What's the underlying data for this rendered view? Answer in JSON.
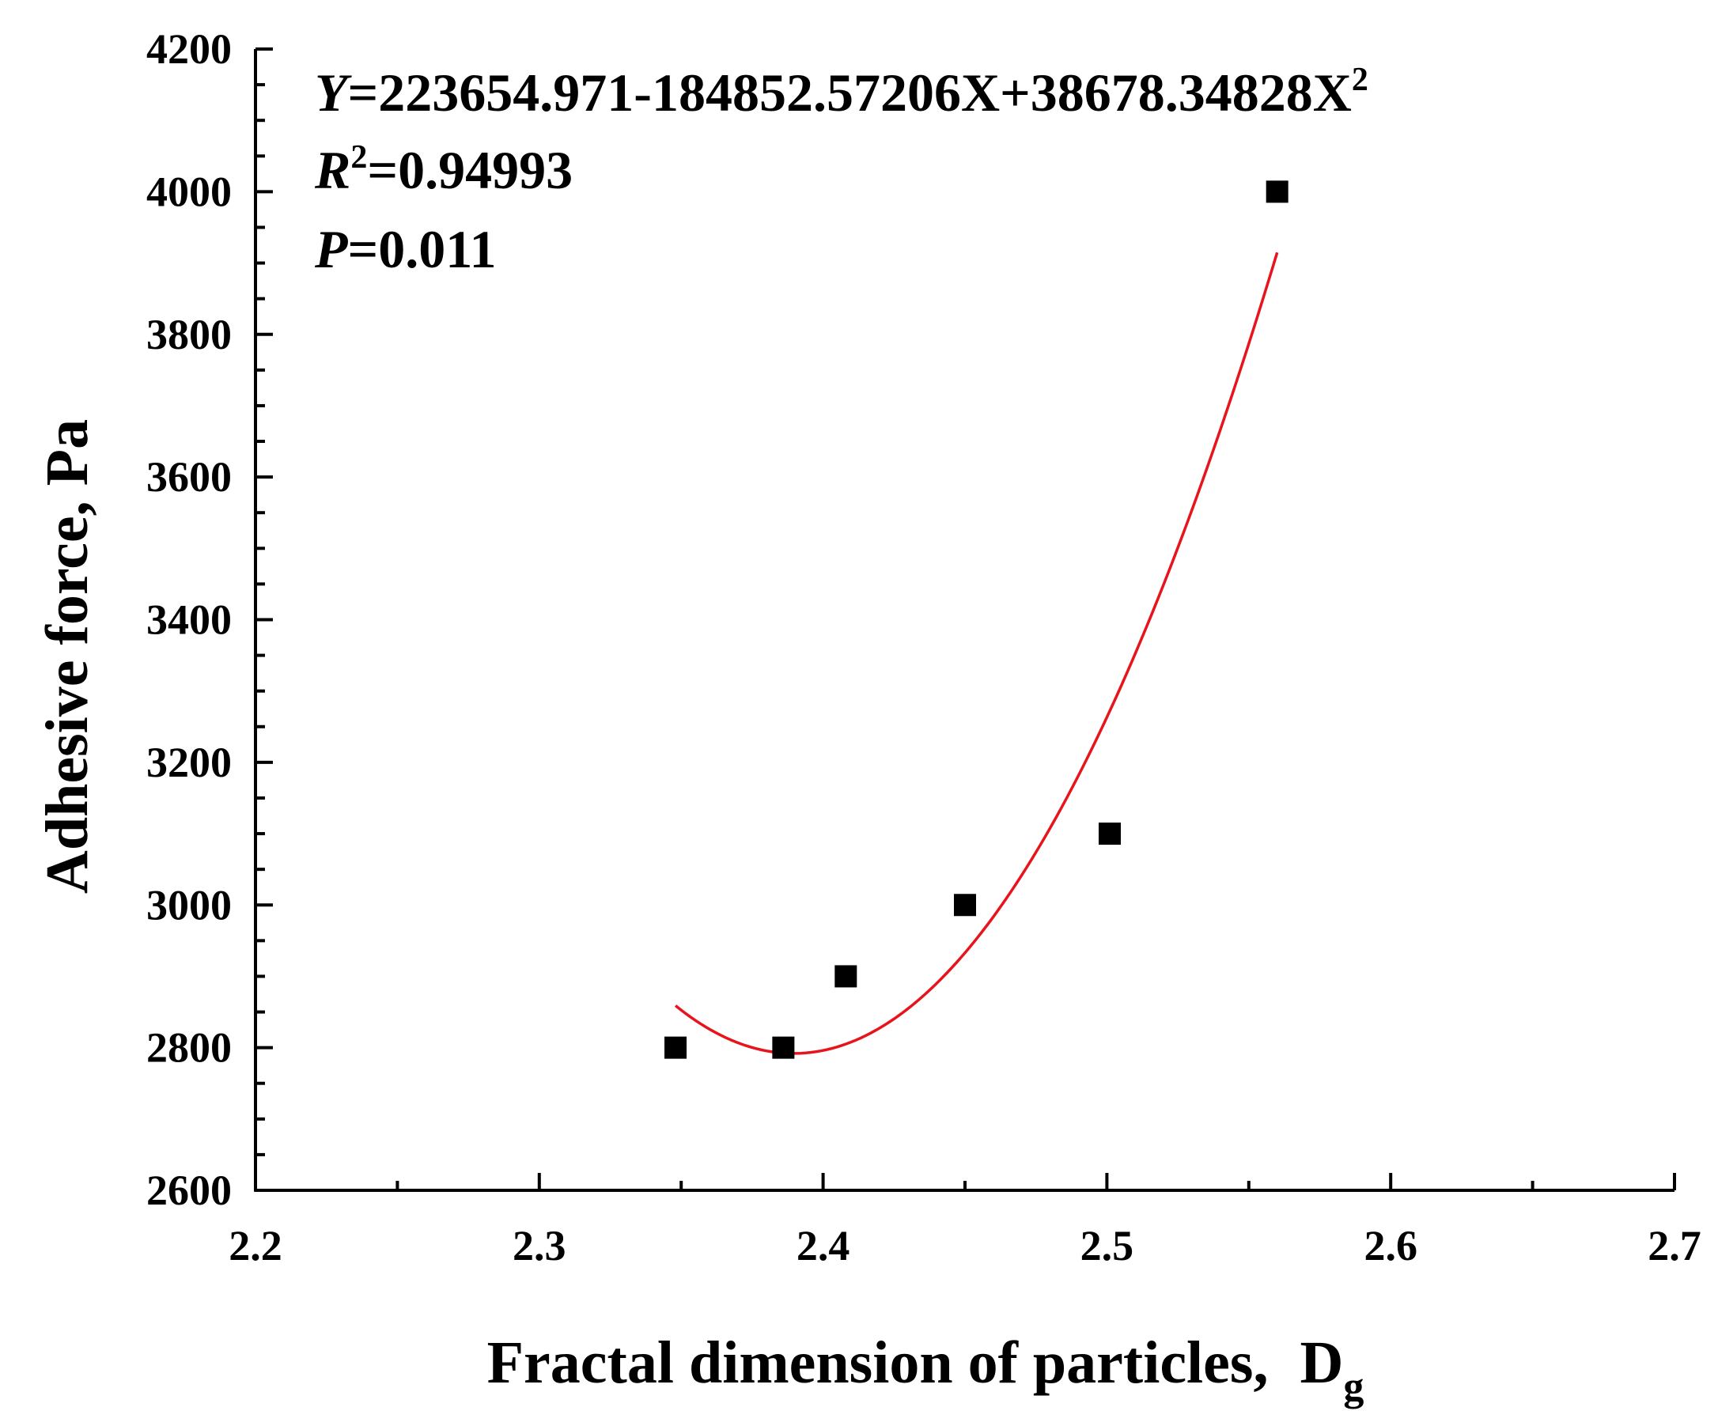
{
  "chart_data": {
    "type": "scatter",
    "title": "",
    "xlabel": "Fractal dimension of particles,",
    "xlabel_symbol": "D",
    "xlabel_subscript": "g",
    "ylabel": "Adhesive force,  Pa",
    "xlim": [
      2.2,
      2.7
    ],
    "ylim": [
      2600,
      4200
    ],
    "x_ticks": [
      "2.2",
      "2.3",
      "2.4",
      "2.5",
      "2.6",
      "2.7"
    ],
    "y_ticks": [
      "2600",
      "2800",
      "3000",
      "3200",
      "3400",
      "3600",
      "3800",
      "4000",
      "4200"
    ],
    "grid": false,
    "series": [
      {
        "points": [
          {
            "x": 2.348,
            "y": 2800
          },
          {
            "x": 2.386,
            "y": 2800
          },
          {
            "x": 2.408,
            "y": 2900
          },
          {
            "x": 2.45,
            "y": 3000
          },
          {
            "x": 2.501,
            "y": 3100
          },
          {
            "x": 2.56,
            "y": 4000
          }
        ],
        "marker": "square",
        "color": "#000000"
      }
    ],
    "fit": {
      "type": "quadratic",
      "coefficients": [
        223654.971,
        -184852.57206,
        38678.34828
      ],
      "x_range": [
        2.348,
        2.56
      ],
      "color": "#e8141c"
    },
    "annotations": {
      "equation": {
        "y_var": "Y",
        "body": "=223654.971-184852.57206X+38678.34828X",
        "sup": "2"
      },
      "r2": {
        "var": "R",
        "sup": "2",
        "body": "=0.94993"
      },
      "p": {
        "var": "P",
        "body": "=0.011"
      }
    }
  }
}
